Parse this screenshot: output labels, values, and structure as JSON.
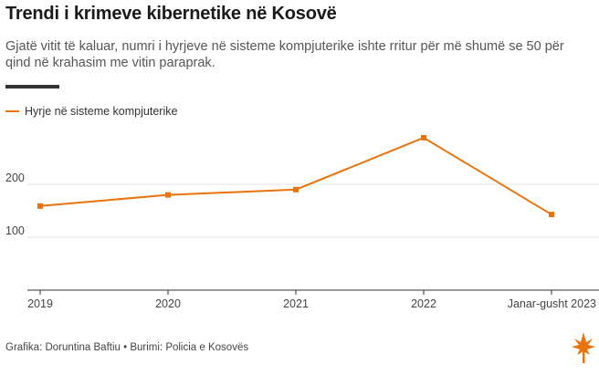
{
  "header": {
    "title": "Trendi i krimeve kibernetike në Kosovë",
    "subtitle": "Gjatë vitit të kaluar, numri i hyrjeve në sisteme kompjuterike ishte rritur për më shumë se 50 për qind në krahasim me vitin paraprak."
  },
  "footer": {
    "credit": "Grafika: Doruntina Baftiu • Burimi: Policia e Kosovës"
  },
  "colors": {
    "series": "#e8730f",
    "grid": "#e3e3e3",
    "axis": "#333333"
  },
  "chart_data": {
    "type": "line",
    "x": [
      "2019",
      "2020",
      "2021",
      "2022",
      "Janar-gusht 2023"
    ],
    "series": [
      {
        "name": "Hyrje në sisteme kompjuterike",
        "values": [
          159,
          180,
          190,
          288,
          143
        ]
      }
    ],
    "yticks": [
      100,
      200
    ],
    "ylim": [
      0,
      300
    ],
    "grid": true,
    "legend": "top-left"
  }
}
